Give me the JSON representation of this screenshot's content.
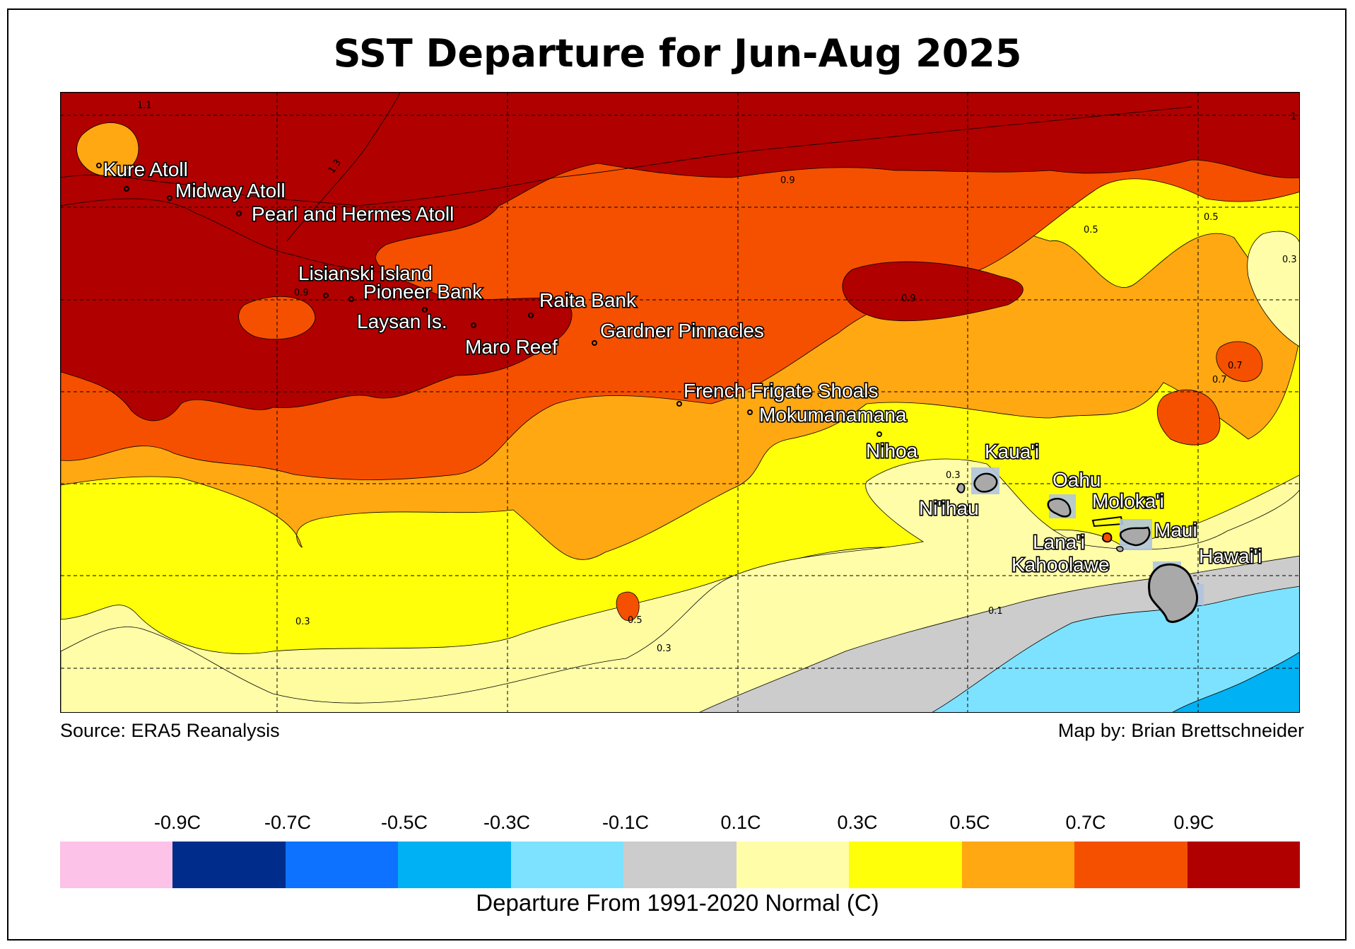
{
  "title": "SST Departure for Jun-Aug 2025",
  "source": "Source: ERA5 Reanalysis",
  "credit": "Map by: Brian Brettschneider",
  "colorbar": {
    "title": "Departure From 1991-2020 Normal (C)",
    "tick_labels": [
      "-0.9C",
      "-0.7C",
      "-0.5C",
      "-0.3C",
      "-0.1C",
      "0.1C",
      "0.3C",
      "0.5C",
      "0.7C",
      "0.9C"
    ],
    "colors": [
      "#fcc2e8",
      "#002d8c",
      "#0c72ff",
      "#00b1f3",
      "#7de2ff",
      "#cccccc",
      "#fffda8",
      "#ffff0a",
      "#ffa812",
      "#f55000",
      "#b00000"
    ]
  },
  "places": [
    {
      "name": "Kure Atoll"
    },
    {
      "name": "Midway Atoll"
    },
    {
      "name": "Pearl and Hermes Atoll"
    },
    {
      "name": "Lisianski Island"
    },
    {
      "name": "Pioneer Bank"
    },
    {
      "name": "Raita Bank"
    },
    {
      "name": "Laysan Is."
    },
    {
      "name": "Gardner Pinnacles"
    },
    {
      "name": "Maro Reef"
    },
    {
      "name": "French Frigate Shoals"
    },
    {
      "name": "Mokumanamana"
    },
    {
      "name": "Nihoa"
    },
    {
      "name": "Kaua'i"
    },
    {
      "name": "Ni'ihau"
    },
    {
      "name": "Oahu"
    },
    {
      "name": "Moloka'i"
    },
    {
      "name": "Maui"
    },
    {
      "name": "Lana'i"
    },
    {
      "name": "Kahoolawe"
    },
    {
      "name": "Hawai'i"
    }
  ],
  "contour_labels": [
    "1.1",
    "0.9",
    "1.3",
    "0.9",
    "0.9",
    "0.5",
    "0.5",
    "0.3",
    "0.7",
    "0.7",
    "0.3",
    "0.5",
    "0.3",
    "0.1",
    "0.3",
    "1"
  ]
}
